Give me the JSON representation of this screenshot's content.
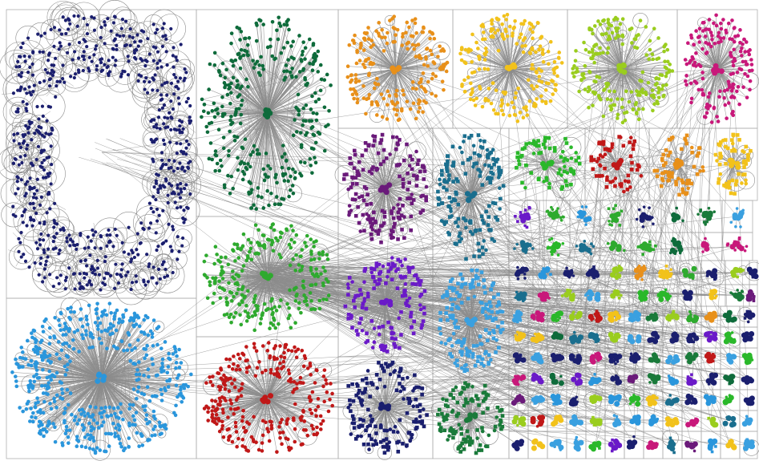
{
  "groups": [
    {
      "color": "#1b1f6e"
    },
    {
      "color": "#0e6b3b"
    },
    {
      "color": "#e8901a"
    },
    {
      "color": "#f2c21b"
    },
    {
      "color": "#9acd1e"
    },
    {
      "color": "#c8187a"
    },
    {
      "color": "#2a96dc"
    },
    {
      "color": "#2eaa2e"
    },
    {
      "color": "#c01818"
    },
    {
      "color": "#6a1a7a"
    },
    {
      "color": "#1a6e8e"
    },
    {
      "color": "#6a1ac8"
    },
    {
      "color": "#3aa0e0"
    },
    {
      "color": "#1a1f6e"
    },
    {
      "color": "#1a7a3a"
    },
    {
      "color": "#2ab82a"
    }
  ]
}
